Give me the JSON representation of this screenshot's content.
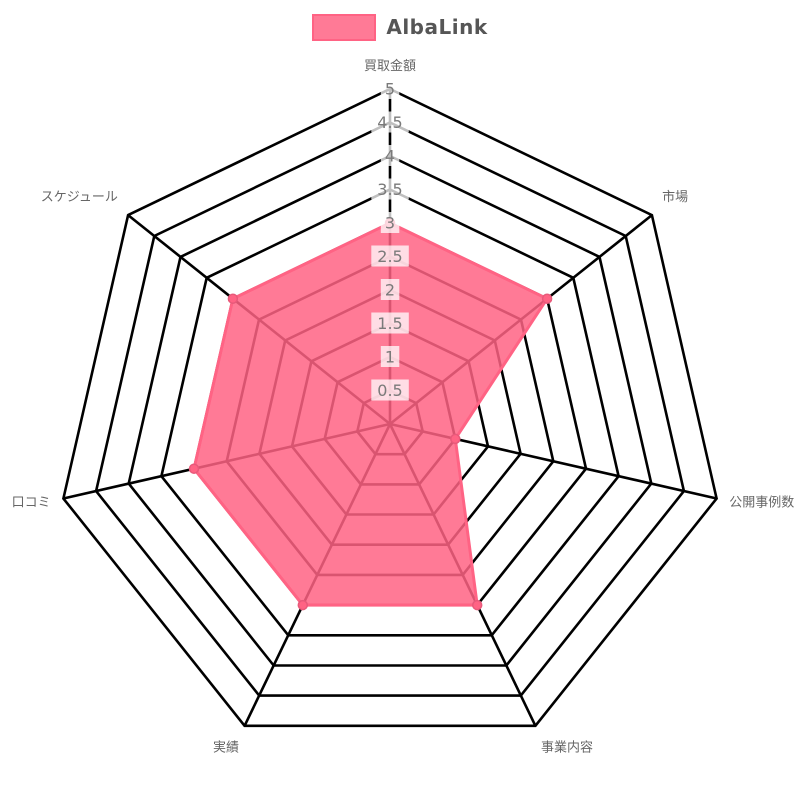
{
  "legend": {
    "label": "AlbaLink",
    "swatch_color": "#FF6384",
    "swatch_fill": "rgba(255,99,132,0.85)"
  },
  "chart_data": {
    "type": "radar",
    "categories": [
      "買取金額",
      "市場",
      "公開事例数",
      "事業内容",
      "実績",
      "口コミ",
      "スケジュール"
    ],
    "series": [
      {
        "name": "AlbaLink",
        "values": [
          3,
          3,
          1,
          3,
          3,
          3,
          3
        ]
      }
    ],
    "rmin": 0,
    "rmax": 5,
    "rstep": 0.5,
    "tick_labels": [
      "0.5",
      "1",
      "1.5",
      "2",
      "2.5",
      "3",
      "3.5",
      "4",
      "4.5",
      "5"
    ],
    "grid": true,
    "legend_position": "top",
    "colors": {
      "fill": "rgba(255,99,132,0.85)",
      "border": "#FF6384",
      "point": "#FF6384",
      "point_stroke": "#e8597a",
      "grid": "#000000",
      "tick_text": "#7a7a7a",
      "tick_backdrop": "rgba(255,255,255,0.75)",
      "axis_label": "#666666"
    }
  }
}
